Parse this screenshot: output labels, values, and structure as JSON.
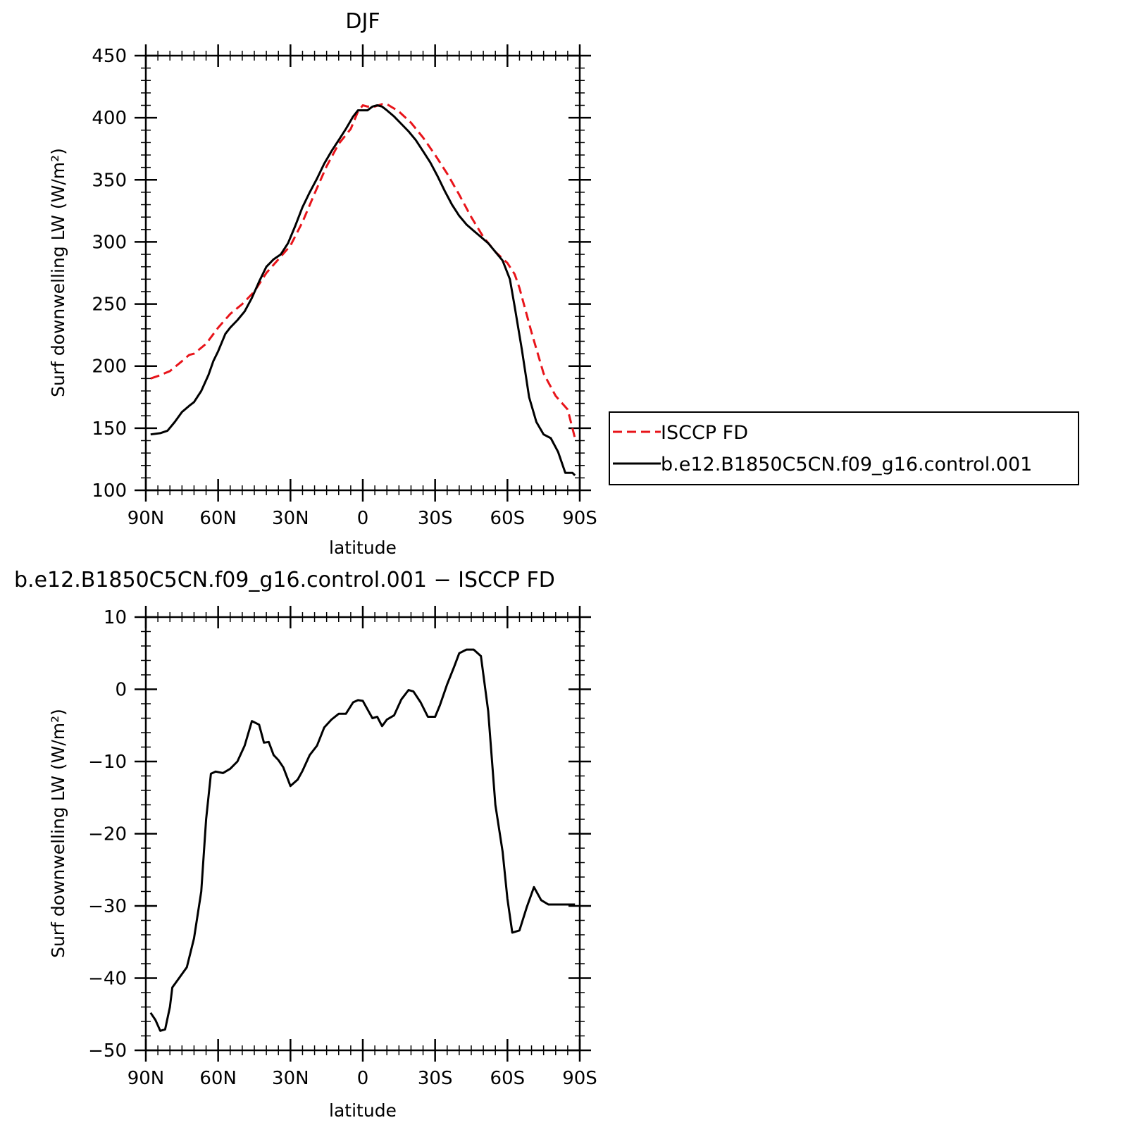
{
  "chart_data": [
    {
      "type": "line",
      "title": "DJF",
      "xlabel": "latitude",
      "ylabel": "Surf downwelling LW (W/m²)",
      "xlim": [
        90,
        -90
      ],
      "ylim": [
        100,
        450
      ],
      "x_ticks": [
        {
          "value": 90,
          "label": "90N"
        },
        {
          "value": 60,
          "label": "60N"
        },
        {
          "value": 30,
          "label": "30N"
        },
        {
          "value": 0,
          "label": "0"
        },
        {
          "value": -30,
          "label": "30S"
        },
        {
          "value": -60,
          "label": "60S"
        },
        {
          "value": -90,
          "label": "90S"
        }
      ],
      "y_ticks": [
        100,
        150,
        200,
        250,
        300,
        350,
        400,
        450
      ],
      "legend": {
        "position": "right"
      },
      "series": [
        {
          "name": "ISCCP FD",
          "color": "#e8141a",
          "dash": "dashed",
          "x": [
            88,
            85,
            80,
            75,
            72,
            70,
            65,
            60,
            55,
            50,
            45,
            40,
            35,
            30,
            25,
            20,
            15,
            10,
            5,
            2,
            0,
            -2,
            -5,
            -8,
            -10,
            -15,
            -20,
            -25,
            -30,
            -35,
            -40,
            -45,
            -50,
            -55,
            -60,
            -63,
            -65,
            -70,
            -75,
            -80,
            -85,
            -88
          ],
          "values": [
            190,
            192,
            196,
            204,
            209,
            210,
            218,
            231,
            242,
            250,
            260,
            275,
            286,
            297,
            316,
            339,
            361,
            379,
            391,
            405,
            410,
            409,
            409,
            411,
            411,
            405,
            396,
            384,
            370,
            355,
            338,
            320,
            304,
            292,
            283,
            274,
            263,
            227,
            194,
            176,
            165,
            142
          ]
        },
        {
          "name": "b.e12.B1850C5CN.f09_g16.control.001",
          "color": "#000000",
          "dash": "solid",
          "x": [
            88,
            84,
            81,
            78,
            75,
            72,
            70,
            67,
            64,
            62,
            60,
            57,
            55,
            52,
            49,
            46,
            43,
            40,
            37,
            34,
            31,
            28,
            25,
            22,
            19,
            16,
            13,
            10,
            7,
            4,
            2,
            0,
            -2,
            -4,
            -6,
            -8,
            -10,
            -13,
            -16,
            -19,
            -22,
            -25,
            -28,
            -31,
            -34,
            -37,
            -40,
            -43,
            -46,
            -49,
            -52,
            -55,
            -58,
            -61,
            -63,
            -66,
            -69,
            -72,
            -75,
            -78,
            -81,
            -84,
            -87,
            -88
          ],
          "values": [
            145,
            146,
            148,
            155,
            163,
            168,
            171,
            180,
            193,
            204,
            212,
            226,
            231,
            237,
            244,
            255,
            268,
            280,
            286,
            290,
            299,
            313,
            328,
            340,
            351,
            363,
            373,
            382,
            391,
            401,
            406,
            406,
            406,
            409,
            410,
            409,
            406,
            401,
            395,
            389,
            382,
            373,
            364,
            353,
            341,
            330,
            321,
            314,
            309,
            304,
            299,
            292,
            285,
            270,
            248,
            213,
            175,
            155,
            145,
            142,
            131,
            114,
            114,
            112
          ]
        }
      ]
    },
    {
      "type": "line",
      "title": "b.e12.B1850C5CN.f09_g16.control.001 − ISCCP FD",
      "xlabel": "latitude",
      "ylabel": "Surf downwelling LW (W/m²)",
      "xlim": [
        90,
        -90
      ],
      "ylim": [
        -50,
        10
      ],
      "x_ticks": [
        {
          "value": 90,
          "label": "90N"
        },
        {
          "value": 60,
          "label": "60N"
        },
        {
          "value": 30,
          "label": "30N"
        },
        {
          "value": 0,
          "label": "0"
        },
        {
          "value": -30,
          "label": "30S"
        },
        {
          "value": -60,
          "label": "60S"
        },
        {
          "value": -90,
          "label": "90S"
        }
      ],
      "y_ticks": [
        {
          "value": -50,
          "label": "−50"
        },
        {
          "value": -40,
          "label": "−40"
        },
        {
          "value": -30,
          "label": "−30"
        },
        {
          "value": -20,
          "label": "−20"
        },
        {
          "value": -10,
          "label": "−10"
        },
        {
          "value": 0,
          "label": "0"
        },
        {
          "value": 10,
          "label": "10"
        }
      ],
      "series": [
        {
          "color": "#000000",
          "dash": "solid",
          "x": [
            88,
            86,
            84,
            82,
            80,
            79,
            76,
            73,
            70,
            67,
            65,
            63,
            61,
            58,
            55,
            52,
            49,
            46,
            43,
            41,
            39,
            37,
            35,
            33,
            30,
            27,
            25,
            22,
            19,
            16,
            13,
            10,
            7,
            4,
            2,
            0,
            -2,
            -4,
            -6,
            -8,
            -10,
            -13,
            -16,
            -19,
            -21,
            -24,
            -27,
            -30,
            -32,
            -35,
            -38,
            -40,
            -43,
            -46,
            -49,
            -52,
            -55,
            -58,
            -60,
            -62,
            -65,
            -68,
            -71,
            -74,
            -77,
            -80,
            -83,
            -86,
            -88
          ],
          "values": [
            -44.8,
            -45.8,
            -47.3,
            -47.1,
            -44,
            -41.3,
            -39.9,
            -38.5,
            -34.5,
            -28,
            -18,
            -11.7,
            -11.4,
            -11.6,
            -11.0,
            -10.0,
            -7.8,
            -4.4,
            -4.9,
            -7.4,
            -7.3,
            -9.1,
            -9.8,
            -10.8,
            -13.4,
            -12.5,
            -11.3,
            -9.1,
            -7.8,
            -5.3,
            -4.2,
            -3.4,
            -3.4,
            -1.8,
            -1.5,
            -1.6,
            -2.8,
            -4.0,
            -3.8,
            -5.1,
            -4.2,
            -3.6,
            -1.4,
            -0.1,
            -0.3,
            -1.8,
            -3.8,
            -3.8,
            -2.2,
            0.7,
            3.2,
            5.0,
            5.5,
            5.5,
            4.6,
            -3.0,
            -16.0,
            -22.5,
            -29.0,
            -33.7,
            -33.4,
            -30.2,
            -27.4,
            -29.2,
            -29.8,
            -29.8,
            -29.8,
            -29.8,
            -29.8
          ]
        }
      ]
    }
  ]
}
